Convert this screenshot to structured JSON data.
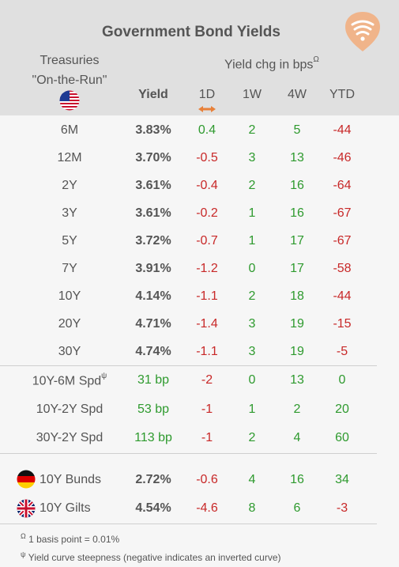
{
  "title": "Government Bond Yields",
  "logo_icon": "fan-signal-logo",
  "header": {
    "treasuries_line1": "Treasuries",
    "treasuries_line2": "\"On-the-Run\"",
    "yield_chg": "Yield chg in bps",
    "yield_chg_sup": "Ω",
    "yield": "Yield",
    "d1": "1D",
    "w1": "1W",
    "w4": "4W",
    "ytd": "YTD",
    "flag_icon": "us-flag-icon",
    "sort_icon": "left-right-arrow-icon"
  },
  "rows": [
    {
      "label": "6M",
      "yield": "3.83%",
      "d1": "0.4",
      "w1": "2",
      "w4": "5",
      "ytd": "-44"
    },
    {
      "label": "12M",
      "yield": "3.70%",
      "d1": "-0.5",
      "w1": "3",
      "w4": "13",
      "ytd": "-46"
    },
    {
      "label": "2Y",
      "yield": "3.61%",
      "d1": "-0.4",
      "w1": "2",
      "w4": "16",
      "ytd": "-64"
    },
    {
      "label": "3Y",
      "yield": "3.61%",
      "d1": "-0.2",
      "w1": "1",
      "w4": "16",
      "ytd": "-67"
    },
    {
      "label": "5Y",
      "yield": "3.72%",
      "d1": "-0.7",
      "w1": "1",
      "w4": "17",
      "ytd": "-67"
    },
    {
      "label": "7Y",
      "yield": "3.91%",
      "d1": "-1.2",
      "w1": "0",
      "w4": "17",
      "ytd": "-58"
    },
    {
      "label": "10Y",
      "yield": "4.14%",
      "d1": "-1.1",
      "w1": "2",
      "w4": "18",
      "ytd": "-44"
    },
    {
      "label": "20Y",
      "yield": "4.71%",
      "d1": "-1.4",
      "w1": "3",
      "w4": "19",
      "ytd": "-15"
    },
    {
      "label": "30Y",
      "yield": "4.74%",
      "d1": "-1.1",
      "w1": "3",
      "w4": "19",
      "ytd": "-5"
    }
  ],
  "spreads": [
    {
      "label": "10Y-6M Spd",
      "sup": "ψ",
      "value": "31 bp",
      "d1": "-2",
      "w1": "0",
      "w4": "13",
      "ytd": "0"
    },
    {
      "label": "10Y-2Y Spd",
      "sup": "",
      "value": "53 bp",
      "d1": "-1",
      "w1": "1",
      "w4": "2",
      "ytd": "20"
    },
    {
      "label": "30Y-2Y Spd",
      "sup": "",
      "value": "113 bp",
      "d1": "-1",
      "w1": "2",
      "w4": "4",
      "ytd": "60"
    }
  ],
  "intl": [
    {
      "label": "10Y Bunds",
      "flag": "germany-flag-icon",
      "yield": "2.72%",
      "d1": "-0.6",
      "w1": "4",
      "w4": "16",
      "ytd": "34"
    },
    {
      "label": "10Y Gilts",
      "flag": "uk-flag-icon",
      "yield": "4.54%",
      "d1": "-4.6",
      "w1": "8",
      "w4": "6",
      "ytd": "-3"
    }
  ],
  "footnotes": {
    "f1_sym": "Ω",
    "f1": "1 basis point = 0.01%",
    "f2_sym": "ψ",
    "f2": "Yield curve steepness (negative indicates an inverted curve)"
  },
  "colors": {
    "positive": "#2e9a2e",
    "negative": "#c82828",
    "header_bg": "#e0e0e0",
    "body_bg": "#f6f6f6",
    "accent": "#e8813a"
  }
}
